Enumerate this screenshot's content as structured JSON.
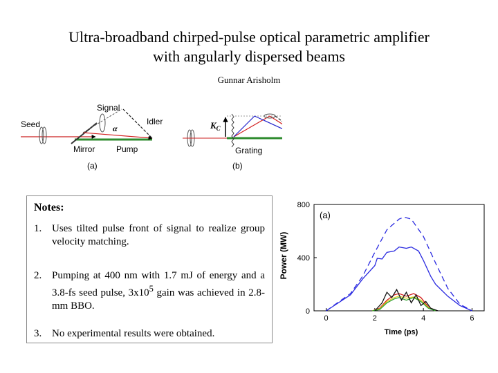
{
  "title_line1": "Ultra-broadband chirped-pulse optical parametric amplifier",
  "title_line2": "with angularly dispersed beams",
  "author": "Gunnar Arisholm",
  "diagram": {
    "a": {
      "seed": "Seed",
      "signal": "Signal",
      "idler": "Idler",
      "alpha": "α",
      "mirror": "Mirror",
      "pump": "Pump",
      "panel": "(a)"
    },
    "b": {
      "kc": "K",
      "kc_sub": "C",
      "grating": "Grating",
      "panel": "(b)"
    },
    "colors": {
      "pump": "#2e8b2e",
      "signal": "#d22020",
      "seed": "#cc2222",
      "idler": "#222222",
      "kc_arrow": "#000000"
    }
  },
  "notes": {
    "heading": "Notes:",
    "items": [
      {
        "num": "1.",
        "text": "Uses tilted pulse front of signal to realize group velocity matching."
      },
      {
        "num": "2.",
        "text_before": "Pumping at 400 nm with 1.7 mJ of energy and a 3.8-fs seed pulse, 3x10",
        "sup": "5",
        "text_after": " gain was achieved in 2.8-mm BBO."
      },
      {
        "num": "3.",
        "text": "No experimental results were obtained."
      }
    ]
  },
  "chart_data": {
    "type": "line",
    "panel_label": "(a)",
    "xlabel": "Time (ps)",
    "ylabel": "Power (MW)",
    "xlim": [
      -0.5,
      6.5
    ],
    "ylim": [
      0,
      800
    ],
    "xticks": [
      0,
      2,
      4,
      6
    ],
    "yticks": [
      0,
      400,
      800
    ],
    "series": [
      {
        "style": "dashed",
        "color": "#2a2ae0",
        "x": [
          0,
          1,
          1.5,
          2,
          2.5,
          3,
          3.2,
          3.5,
          4,
          4.5,
          5,
          5.5,
          6
        ],
        "y": [
          0,
          130,
          260,
          440,
          610,
          690,
          705,
          690,
          560,
          360,
          170,
          50,
          0
        ]
      },
      {
        "style": "solid",
        "color": "#2a2ae0",
        "x": [
          0,
          1,
          1.5,
          2,
          2.1,
          2.3,
          2.5,
          2.8,
          3,
          3.3,
          3.5,
          3.8,
          4,
          4.3,
          4.5,
          5,
          5.5,
          6
        ],
        "y": [
          0,
          120,
          240,
          340,
          395,
          390,
          440,
          450,
          480,
          470,
          480,
          450,
          380,
          260,
          200,
          110,
          40,
          0
        ]
      },
      {
        "style": "solid",
        "color": "#d22020",
        "x": [
          1.9,
          2.2,
          2.5,
          2.8,
          3.0,
          3.3,
          3.6,
          3.9,
          4.2,
          4.5
        ],
        "y": [
          0,
          20,
          80,
          120,
          130,
          110,
          130,
          100,
          30,
          0
        ]
      },
      {
        "style": "solid",
        "color": "#e0d020",
        "x": [
          1.9,
          2.2,
          2.5,
          2.8,
          3.0,
          3.3,
          3.6,
          3.9,
          4.2,
          4.5
        ],
        "y": [
          0,
          15,
          70,
          100,
          110,
          95,
          105,
          80,
          25,
          0
        ]
      },
      {
        "style": "solid",
        "color": "#30a030",
        "x": [
          1.9,
          2.2,
          2.5,
          2.8,
          3.0,
          3.3,
          3.6,
          3.9,
          4.2,
          4.5
        ],
        "y": [
          0,
          10,
          60,
          90,
          100,
          80,
          100,
          70,
          20,
          0
        ]
      },
      {
        "style": "solid",
        "color": "#111111",
        "x": [
          2.0,
          2.3,
          2.5,
          2.7,
          2.9,
          3.1,
          3.3,
          3.5,
          3.7,
          3.9,
          4.1,
          4.3,
          4.6
        ],
        "y": [
          0,
          60,
          140,
          100,
          160,
          80,
          140,
          60,
          120,
          40,
          70,
          20,
          0
        ]
      }
    ]
  }
}
